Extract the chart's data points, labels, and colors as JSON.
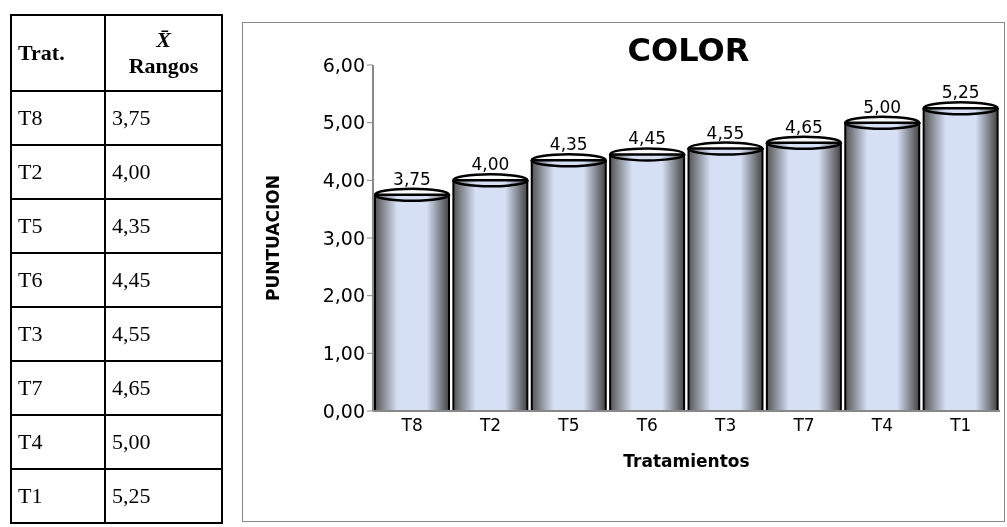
{
  "chart_data": {
    "type": "bar",
    "title": "COLOR",
    "xlabel": "Tratamientos",
    "ylabel": "PUNTUACION",
    "categories": [
      "T8",
      "T2",
      "T5",
      "T6",
      "T3",
      "T7",
      "T4",
      "T1"
    ],
    "values": [
      3.75,
      4.0,
      4.35,
      4.45,
      4.55,
      4.65,
      5.0,
      5.25
    ],
    "color": "#d6e0f5",
    "ylim": [
      0,
      6
    ],
    "yticks": [
      {
        "value": 0,
        "label": "0,00"
      },
      {
        "value": 1,
        "label": "1,00"
      },
      {
        "value": 2,
        "label": "2,00"
      },
      {
        "value": 3,
        "label": "3,00"
      },
      {
        "value": 4,
        "label": "4,00"
      },
      {
        "value": 5,
        "label": "5,00"
      },
      {
        "value": 6,
        "label": "6,00"
      }
    ],
    "value_labels": [
      "3,75",
      "4,00",
      "4,35",
      "4,45",
      "4,55",
      "4,65",
      "5,00",
      "5,25"
    ],
    "annotations": [
      "Trat.",
      "X̄ Rangos"
    ]
  }
}
